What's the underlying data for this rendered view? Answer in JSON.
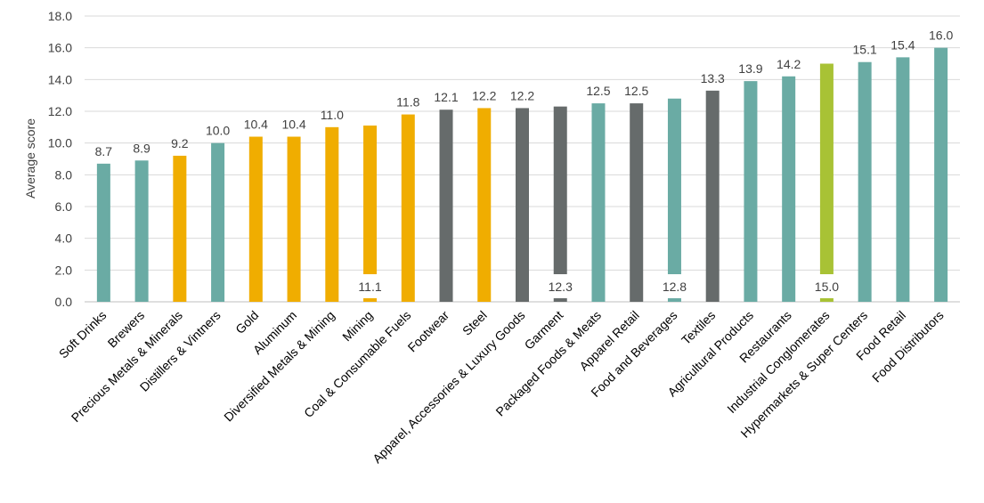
{
  "chart_data": {
    "type": "bar",
    "ylabel": "Average score",
    "xlabel": "",
    "ylim": [
      0,
      18
    ],
    "yticks": [
      "0.0",
      "2.0",
      "4.0",
      "6.0",
      "8.0",
      "10.0",
      "12.0",
      "14.0",
      "16.0",
      "18.0"
    ],
    "grid": true,
    "categories": [
      "Soft Drinks",
      "Brewers",
      "Precious Metals & Minerals",
      "Distillers & Vintners",
      "Gold",
      "Aluminum",
      "Diversified Metals & Mining",
      "Mining",
      "Coal & Consumable Fuels",
      "Footwear",
      "Steel",
      "Apparel, Accessories & Luxury Goods",
      "Garment",
      "Packaged Foods & Meats",
      "Apparel Retail",
      "Food and Beverages",
      "Textiles",
      "Agricultural Products",
      "Restaurants",
      "Industrial Conglomerates",
      "Hypermarkets & Super Centers",
      "Food Retail",
      "Food Distributors"
    ],
    "values": [
      8.7,
      8.9,
      9.2,
      10.0,
      10.4,
      10.4,
      11.0,
      11.1,
      11.8,
      12.1,
      12.2,
      12.2,
      12.3,
      12.5,
      12.5,
      12.8,
      13.3,
      13.9,
      14.2,
      15.0,
      15.1,
      15.4,
      16.0
    ],
    "value_labels": [
      "8.7",
      "8.9",
      "9.2",
      "10.0",
      "10.4",
      "10.4",
      "11.0",
      "11.1",
      "11.8",
      "12.1",
      "12.2",
      "12.2",
      "12.3",
      "12.5",
      "12.5",
      "12.8",
      "13.3",
      "13.9",
      "14.2",
      "15.0",
      "15.1",
      "15.4",
      "16.0"
    ],
    "label_inside_bottom": [
      false,
      false,
      false,
      false,
      false,
      false,
      false,
      true,
      false,
      false,
      false,
      false,
      true,
      false,
      false,
      true,
      false,
      false,
      false,
      true,
      false,
      false,
      false
    ],
    "bar_colors": [
      "#6aaba4",
      "#6aaba4",
      "#f0ad00",
      "#6aaba4",
      "#f0ad00",
      "#f0ad00",
      "#f0ad00",
      "#f0ad00",
      "#f0ad00",
      "#666b6b",
      "#f0ad00",
      "#666b6b",
      "#666b6b",
      "#6aaba4",
      "#666b6b",
      "#6aaba4",
      "#666b6b",
      "#6aaba4",
      "#6aaba4",
      "#a8c235",
      "#6aaba4",
      "#6aaba4",
      "#6aaba4"
    ],
    "gridline_color": "#d9d9d9"
  }
}
